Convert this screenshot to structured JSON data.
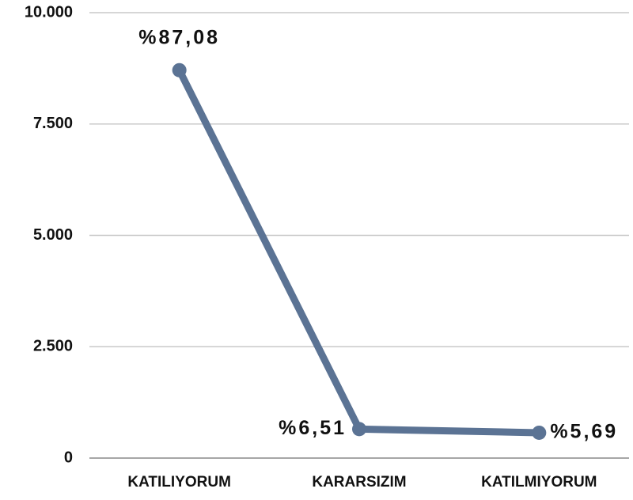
{
  "chart_data": {
    "type": "line",
    "categories": [
      "KATILIYORUM",
      "KARARSIZIM",
      "KATILMIYORUM"
    ],
    "series": [
      {
        "color": "#5b7394",
        "values": [
          8708,
          651,
          569
        ],
        "value_labels": [
          "%87,08",
          "%6,51",
          "%5,69"
        ]
      }
    ],
    "ylim": [
      0,
      10000
    ],
    "yticks": [
      0,
      {
        "value": 2500,
        "label": "2.500"
      },
      {
        "value": 5000,
        "label": "5.000"
      },
      {
        "value": 7500,
        "label": "7.500"
      },
      {
        "value": 10000,
        "label": "10.000"
      }
    ],
    "grid": true
  }
}
